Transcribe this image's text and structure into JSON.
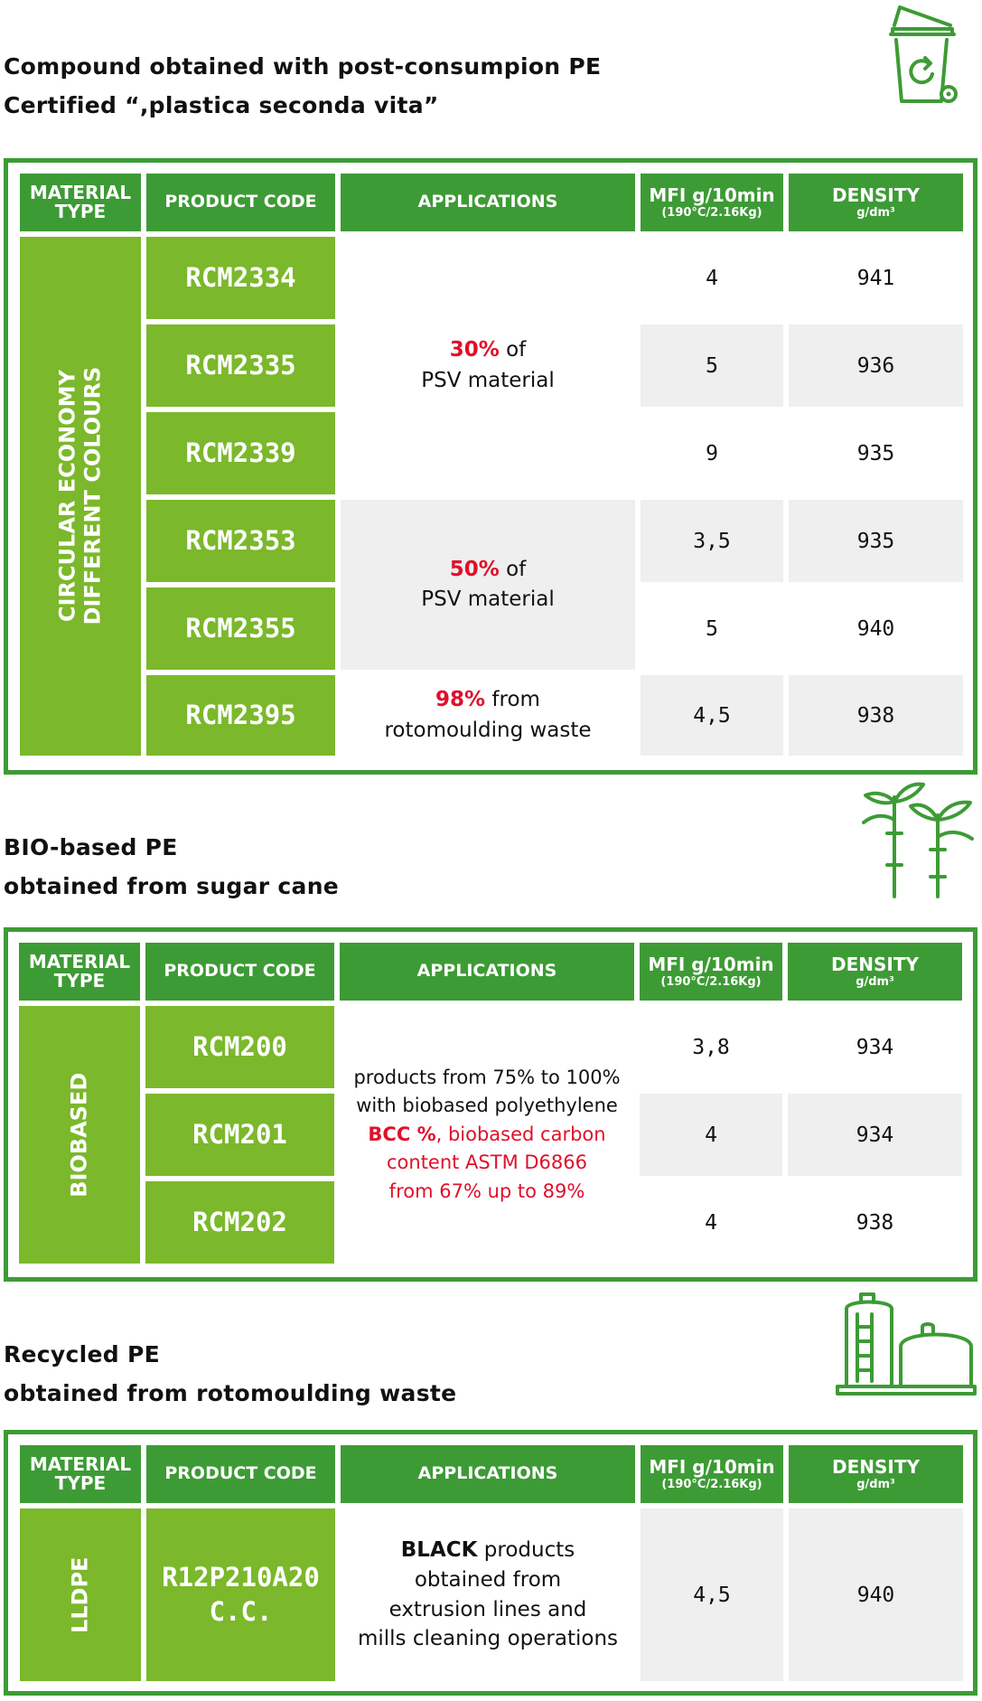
{
  "common": {
    "hdr_material": [
      "MATERIAL",
      "TYPE"
    ],
    "hdr_product_code": "PRODUCT CODE",
    "hdr_applications": "APPLICATIONS",
    "hdr_mfi": "MFI g/10min",
    "hdr_mfi_sub": "(190°C/2.16Kg)",
    "hdr_density": "DENSITY",
    "hdr_density_sub": "g/dm³"
  },
  "section1": {
    "heading": [
      "Compound obtained with post-consumpion PE",
      "Certified “,plastica seconda vita”"
    ],
    "icon": "recycle-bin-icon",
    "material_type": [
      "CIRCULAR ECONOMY",
      "DIFFERENT COLOURS"
    ],
    "rows": [
      {
        "code": "RCM2334",
        "mfi": "4",
        "density": "941"
      },
      {
        "code": "RCM2335",
        "mfi": "5",
        "density": "936"
      },
      {
        "code": "RCM2339",
        "mfi": "9",
        "density": "935"
      },
      {
        "code": "RCM2353",
        "mfi": "3,5",
        "density": "935"
      },
      {
        "code": "RCM2355",
        "mfi": "5",
        "density": "940"
      },
      {
        "code": "RCM2395",
        "mfi": "4,5",
        "density": "938"
      }
    ],
    "app_groups": [
      {
        "highlight": "30%",
        "rest": " of",
        "line2": "PSV material"
      },
      {
        "highlight": "50%",
        "rest": " of",
        "line2": "PSV material"
      },
      {
        "highlight": "98%",
        "rest": " from",
        "line2": "rotomoulding waste"
      }
    ]
  },
  "section2": {
    "heading": [
      "BIO-based PE",
      "obtained from sugar cane"
    ],
    "icon": "sugar-cane-icon",
    "material_type": "BIOBASED",
    "rows": [
      {
        "code": "RCM200",
        "mfi": "3,8",
        "density": "934"
      },
      {
        "code": "RCM201",
        "mfi": "4",
        "density": "934"
      },
      {
        "code": "RCM202",
        "mfi": "4",
        "density": "938"
      }
    ],
    "app_lines": [
      "products from 75% to 100%",
      "with biobased polyethylene"
    ],
    "app_red_bold": "BCC %",
    "app_red_rest": ", biobased carbon",
    "app_red_lines": [
      "content ASTM D6866",
      "from 67% up to 89%"
    ]
  },
  "section3": {
    "heading": [
      "Recycled PE",
      "obtained from rotomoulding waste"
    ],
    "icon": "silo-icon",
    "material_type": "LLDPE",
    "code": [
      "R12P210A20",
      "C.C."
    ],
    "app_bold": "BLACK",
    "app_rest": " products",
    "app_lines": [
      "obtained from",
      "extrusion lines and",
      "mills cleaning operations"
    ],
    "mfi": "4,5",
    "density": "940"
  }
}
